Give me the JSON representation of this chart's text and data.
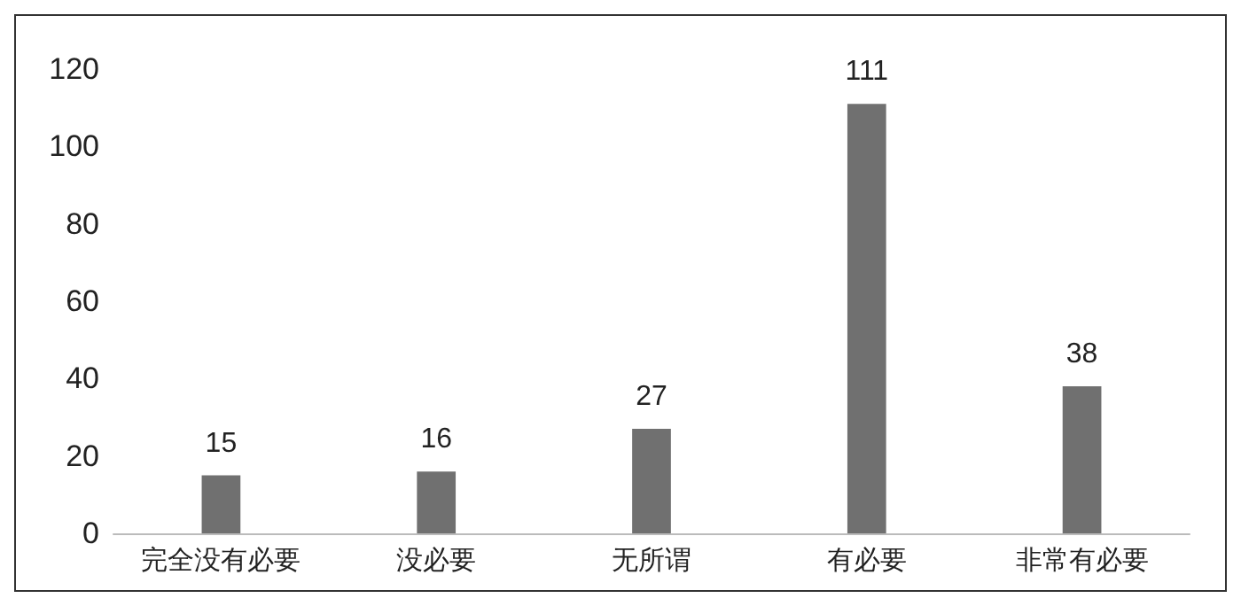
{
  "chart_data": {
    "type": "bar",
    "categories": [
      "完全没有必要",
      "没必要",
      "无所谓",
      "有必要",
      "非常有必要"
    ],
    "values": [
      15,
      16,
      27,
      111,
      38
    ],
    "color": "#707070",
    "data_labels": true,
    "ylim": [
      0,
      120
    ],
    "yticks": [
      0,
      20,
      40,
      60,
      80,
      100,
      120
    ],
    "grid": false
  }
}
